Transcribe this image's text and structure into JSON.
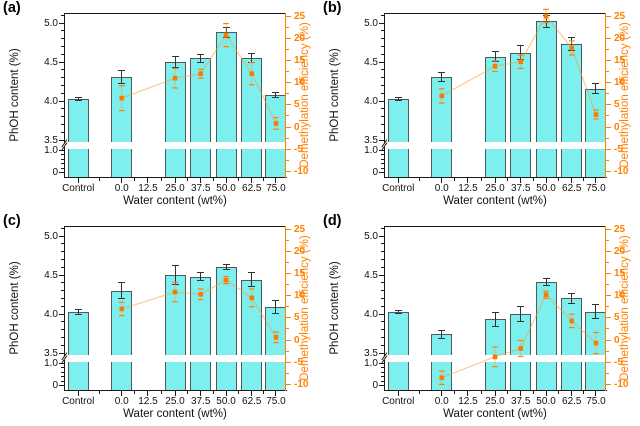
{
  "chart_data": {
    "type": "bar",
    "subtype": "four-panel bar chart with secondary-axis scatter points and broken left axis",
    "categories": [
      "Control",
      "0.0",
      "12.5",
      "25.0",
      "37.5",
      "50.0",
      "62.5",
      "75.0"
    ],
    "xlabel": "Water content (wt%)",
    "ylabel_left": "PhOH content (%)",
    "ylabel_right": "Demethylation efficiency (%)",
    "left_axis": {
      "tick_labels": [
        "5.0",
        "4.5",
        "4.0",
        "3.5",
        "1.0",
        "0"
      ],
      "tick_values": [
        5.0,
        4.5,
        4.0,
        3.5,
        1.0,
        0
      ],
      "axis_break_between": [
        1.0,
        3.5
      ],
      "range_upper_segment": [
        3.5,
        5.15
      ],
      "range_lower_segment": [
        0,
        1.0
      ]
    },
    "right_axis": {
      "tick_labels": [
        "25",
        "20",
        "15",
        "10",
        "5",
        "0",
        "-5",
        "-10"
      ],
      "tick_values": [
        25,
        20,
        15,
        10,
        5,
        0,
        -5,
        -10
      ],
      "range": [
        -10,
        25
      ]
    },
    "grid": "off",
    "legend": "none",
    "panels": [
      {
        "label": "(a)",
        "bars": {
          "series": "PhOH content (%)",
          "values": [
            4.03,
            4.31,
            null,
            4.5,
            4.55,
            4.88,
            4.55,
            4.08
          ],
          "errors": [
            0.02,
            0.08,
            null,
            0.07,
            0.05,
            0.06,
            0.06,
            0.03
          ]
        },
        "scatter": {
          "series": "Demethylation efficiency (%)",
          "values": [
            null,
            6.5,
            null,
            11.0,
            12.0,
            20.7,
            12.0,
            0.8
          ],
          "errors": [
            null,
            2.8,
            null,
            2.2,
            1.0,
            2.6,
            2.5,
            1.3
          ]
        }
      },
      {
        "label": "(b)",
        "bars": {
          "series": "PhOH content (%)",
          "values": [
            4.03,
            4.31,
            null,
            4.57,
            4.62,
            5.02,
            4.73,
            4.16
          ],
          "errors": [
            0.02,
            0.06,
            null,
            0.06,
            0.09,
            0.08,
            0.08,
            0.07
          ]
        },
        "scatter": {
          "series": "Demethylation efficiency (%)",
          "values": [
            null,
            7.0,
            null,
            13.7,
            14.7,
            25.0,
            17.8,
            2.8
          ],
          "errors": [
            null,
            1.6,
            null,
            1.2,
            1.5,
            1.5,
            1.6,
            1.0
          ]
        }
      },
      {
        "label": "(c)",
        "bars": {
          "series": "PhOH content (%)",
          "values": [
            4.03,
            4.3,
            null,
            4.5,
            4.48,
            4.6,
            4.44,
            4.09
          ],
          "errors": [
            0.03,
            0.1,
            null,
            0.12,
            0.05,
            0.03,
            0.09,
            0.08
          ]
        },
        "scatter": {
          "series": "Demethylation efficiency (%)",
          "values": [
            null,
            7.0,
            null,
            10.8,
            10.3,
            13.5,
            9.5,
            0.6
          ],
          "errors": [
            null,
            1.5,
            null,
            2.2,
            1.2,
            0.8,
            2.0,
            1.2
          ]
        }
      },
      {
        "label": "(d)",
        "bars": {
          "series": "PhOH content (%)",
          "values": [
            4.03,
            3.74,
            null,
            3.93,
            4.0,
            4.41,
            4.2,
            4.03
          ],
          "errors": [
            0.02,
            0.05,
            null,
            0.09,
            0.1,
            0.04,
            0.06,
            0.09
          ]
        },
        "scatter": {
          "series": "Demethylation efficiency (%)",
          "values": [
            null,
            -8.5,
            null,
            -3.8,
            -1.9,
            10.2,
            4.3,
            -0.7
          ],
          "errors": [
            null,
            1.5,
            null,
            2.2,
            1.8,
            0.8,
            1.5,
            2.4
          ]
        }
      }
    ],
    "colors": {
      "bar_fill": "#7EEFEF",
      "bar_edge": "#4F5B5B",
      "error_bar": "#333333",
      "accent_orange": "#FF8000",
      "point_orange": "#F87B00",
      "pale_orange_line": "rgba(255,150,40,0.5)",
      "axis_black": "#1A1A1A",
      "background": "#FFFFFF"
    }
  }
}
